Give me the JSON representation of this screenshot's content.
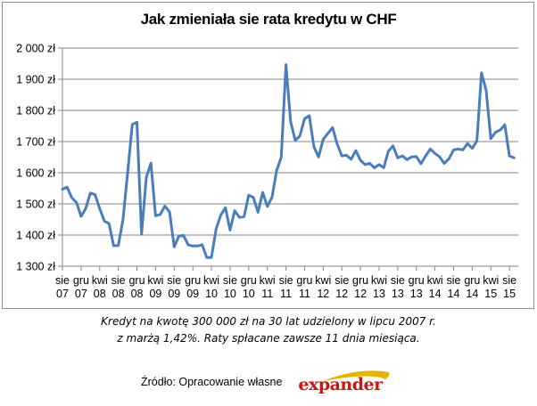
{
  "chart_data": {
    "type": "line",
    "title": "Jak zmieniała sie rata kredytu w CHF",
    "xlabel": "",
    "ylabel": "",
    "ylim": [
      1300,
      2000
    ],
    "y_ticks": [
      "1 300 zł",
      "1 400 zł",
      "1 500 zł",
      "1 600 zł",
      "1 700 zł",
      "1 800 zł",
      "1 900 zł",
      "2 000 zł"
    ],
    "y_tick_values": [
      1300,
      1400,
      1500,
      1600,
      1700,
      1800,
      1900,
      2000
    ],
    "grid": true,
    "legend": "none",
    "x_tick_labels": [
      [
        "sie",
        "07"
      ],
      [
        "gru",
        "07"
      ],
      [
        "kwi",
        "08"
      ],
      [
        "sie",
        "08"
      ],
      [
        "gru",
        "08"
      ],
      [
        "kwi",
        "09"
      ],
      [
        "sie",
        "09"
      ],
      [
        "gru",
        "09"
      ],
      [
        "kwi",
        "10"
      ],
      [
        "sie",
        "10"
      ],
      [
        "gru",
        "10"
      ],
      [
        "kwi",
        "11"
      ],
      [
        "sie",
        "11"
      ],
      [
        "gru",
        "11"
      ],
      [
        "kwi",
        "12"
      ],
      [
        "sie",
        "12"
      ],
      [
        "gru",
        "12"
      ],
      [
        "kwi",
        "13"
      ],
      [
        "sie",
        "13"
      ],
      [
        "gru",
        "13"
      ],
      [
        "kwi",
        "14"
      ],
      [
        "sie",
        "14"
      ],
      [
        "gru",
        "14"
      ],
      [
        "kwi",
        "15"
      ],
      [
        "sie",
        "15"
      ]
    ],
    "x_start": "sie 07",
    "x_interval_months": 1,
    "series": [
      {
        "name": "Rata kredytu w CHF",
        "color": "#4a7ebb",
        "values": [
          1547,
          1554,
          1520,
          1505,
          1460,
          1485,
          1535,
          1530,
          1485,
          1445,
          1437,
          1366,
          1366,
          1450,
          1600,
          1755,
          1762,
          1403,
          1585,
          1631,
          1462,
          1466,
          1493,
          1474,
          1362,
          1397,
          1399,
          1369,
          1365,
          1365,
          1369,
          1328,
          1328,
          1420,
          1464,
          1488,
          1416,
          1478,
          1457,
          1459,
          1528,
          1521,
          1473,
          1537,
          1492,
          1521,
          1607,
          1650,
          1947,
          1764,
          1704,
          1718,
          1773,
          1783,
          1683,
          1651,
          1707,
          1726,
          1745,
          1692,
          1654,
          1656,
          1643,
          1671,
          1640,
          1626,
          1630,
          1616,
          1626,
          1616,
          1669,
          1686,
          1648,
          1654,
          1642,
          1651,
          1652,
          1629,
          1654,
          1676,
          1662,
          1651,
          1630,
          1645,
          1673,
          1676,
          1673,
          1694,
          1678,
          1702,
          1921,
          1864,
          1709,
          1730,
          1737,
          1754,
          1654,
          1648
        ]
      }
    ]
  },
  "note": {
    "line1": "Kredyt na kwotę 300 000 zł na 30 lat udzielony w lipcu 2007 r.",
    "line2": "z marżą 1,42%. Raty spłacane zawsze 11 dnia miesiąca."
  },
  "source": {
    "text": "Źródło: Opracowanie własne",
    "logo_text": "expander",
    "logo_color": "#cc1414",
    "logo_arc_color": "#e8b400"
  }
}
